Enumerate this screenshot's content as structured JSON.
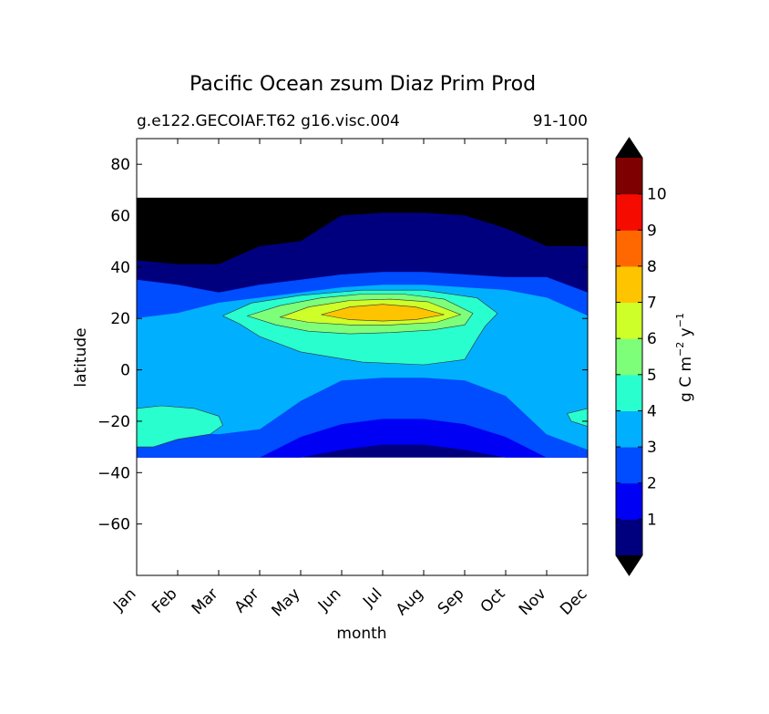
{
  "chart_data": {
    "type": "heatmap",
    "subtype": "filled-contour",
    "title": "Pacific Ocean zsum Diaz Prim Prod",
    "subtitle_left": "g.e122.GECOIAF.T62 g16.visc.004",
    "subtitle_right": "91-100",
    "xlabel": "month",
    "ylabel": "latitude",
    "x_categories": [
      "Jan",
      "Feb",
      "Mar",
      "Apr",
      "May",
      "Jun",
      "Jul",
      "Aug",
      "Sep",
      "Oct",
      "Nov",
      "Dec"
    ],
    "xlim": [
      1,
      12
    ],
    "ylim": [
      -80,
      90
    ],
    "y_ticks": [
      80,
      60,
      40,
      20,
      0,
      -20,
      -40,
      -60
    ],
    "y_tick_labels": [
      "80",
      "60",
      "40",
      "20",
      "0",
      "−20",
      "−40",
      "−60"
    ],
    "data_lat_range": [
      -34,
      67
    ],
    "no_data_color": "#000000",
    "colorbar": {
      "label": "g C m⁻² y⁻¹",
      "label_base": "g C m",
      "label_exp1": "−2",
      "label_mid": "y",
      "label_exp2": "−1",
      "levels": [
        0,
        1,
        2,
        3,
        4,
        5,
        6,
        7,
        8,
        9,
        10,
        11
      ],
      "tick_labels": [
        "1",
        "2",
        "3",
        "4",
        "5",
        "6",
        "7",
        "8",
        "9",
        "10"
      ],
      "colors": [
        "#00007f",
        "#0000f5",
        "#004cff",
        "#00b0ff",
        "#29ffce",
        "#7dff7a",
        "#ceff29",
        "#ffc400",
        "#ff6800",
        "#f50b00",
        "#7f0000"
      ],
      "extend_low_color": "#000000",
      "extend_high_color": "#000000"
    },
    "boundaries": {
      "months": [
        1,
        2,
        3,
        4,
        5,
        6,
        7,
        8,
        9,
        10,
        11,
        12
      ],
      "north_data_edge": [
        42.5,
        41,
        41,
        48,
        50,
        60,
        61,
        61,
        60,
        55,
        48,
        48
      ],
      "level_2_north": [
        35,
        33,
        30,
        33,
        35,
        37,
        38,
        38,
        37,
        36,
        36,
        30
      ],
      "level_3_north": [
        20,
        22,
        26,
        28,
        30,
        32,
        33,
        33,
        32,
        31,
        28,
        21
      ],
      "level_3_south": [
        -22,
        -24,
        -25,
        -23,
        -12,
        -4,
        -3,
        -3,
        -4,
        -10,
        -25,
        -31
      ],
      "level_2_south": [
        -34,
        -34,
        -34,
        -34,
        -26,
        -21,
        -19,
        -19,
        -21,
        -26,
        -34,
        -34
      ],
      "level_1_south": [
        -34,
        -34,
        -34,
        -34,
        -34,
        -31,
        -29,
        -29,
        -31,
        -34,
        -34,
        -34
      ]
    },
    "contours": [
      {
        "level": 4,
        "month": [
          3.1,
          3.8,
          5.0,
          6.5,
          8.0,
          9.3,
          9.8,
          9.5,
          9.3,
          9.0,
          8.0,
          6.5,
          5.0,
          4.0,
          3.5
        ],
        "lat": [
          21,
          26,
          29,
          31,
          31,
          28,
          22,
          17,
          12,
          4,
          2,
          3,
          7,
          13,
          18
        ]
      },
      {
        "level": 5,
        "month": [
          3.7,
          4.5,
          5.5,
          6.5,
          7.5,
          8.5,
          9.2,
          9.0,
          8.2,
          7.2,
          6.2,
          5.2,
          4.4
        ],
        "lat": [
          21,
          25,
          28,
          29.5,
          29.5,
          27.5,
          22,
          17.5,
          15.5,
          14.5,
          14,
          15,
          17.5
        ]
      },
      {
        "level": 6,
        "month": [
          4.5,
          5.2,
          6.2,
          7.2,
          8.1,
          8.9,
          8.3,
          7.2,
          6.2,
          5.2
        ],
        "lat": [
          20.5,
          24.5,
          27,
          27.5,
          26.5,
          21.5,
          18.5,
          17.5,
          17.5,
          18.5
        ]
      },
      {
        "level": 7,
        "month": [
          5.5,
          6.2,
          7.0,
          7.8,
          8.5,
          7.8,
          7.0,
          6.2
        ],
        "lat": [
          21.5,
          24.5,
          25.5,
          24.5,
          21.5,
          19.5,
          19,
          19.5
        ]
      }
    ],
    "south_patches": [
      {
        "level": 4,
        "month": [
          1.0,
          1.6,
          2.4,
          3.0,
          3.1,
          2.8,
          2.0,
          1.4,
          1.0
        ],
        "lat": [
          -15,
          -14,
          -15,
          -18,
          -21.5,
          -25,
          -27,
          -30,
          -30
        ]
      },
      {
        "level": 4,
        "month": [
          12.0,
          11.5,
          11.6,
          12.0
        ],
        "lat": [
          -15,
          -17,
          -20,
          -22
        ]
      }
    ]
  }
}
